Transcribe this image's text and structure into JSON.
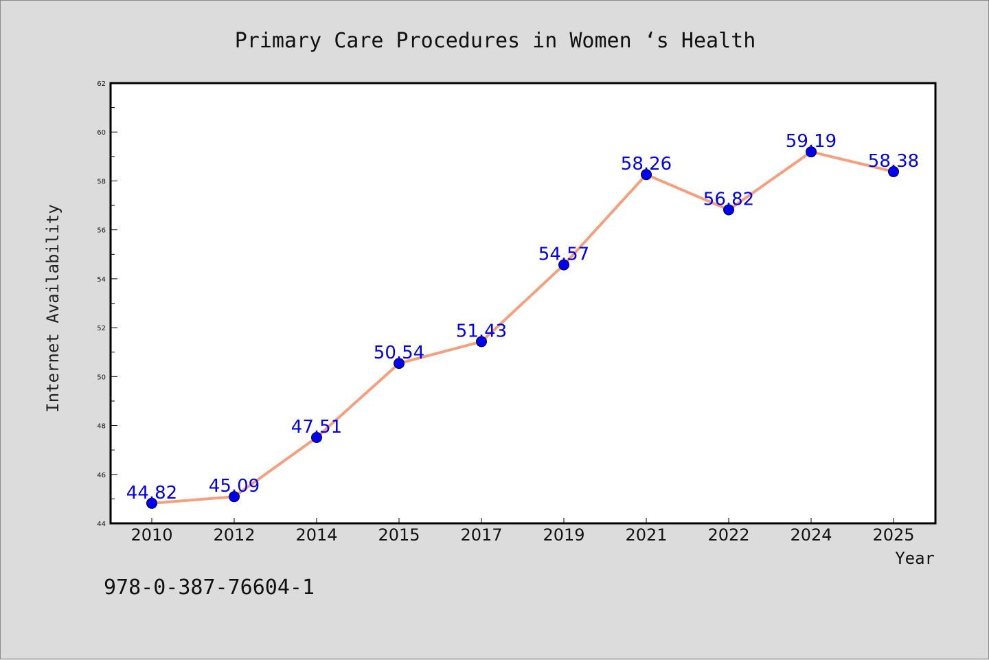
{
  "chart_data": {
    "type": "line",
    "title": "Primary Care Procedures in Women ‘s Health",
    "xlabel": "Year",
    "ylabel": "Internet Availability",
    "categories": [
      "2010",
      "2012",
      "2014",
      "2015",
      "2017",
      "2019",
      "2021",
      "2022",
      "2024",
      "2025"
    ],
    "series": [
      {
        "values": [
          44.82,
          45.09,
          47.51,
          50.54,
          51.43,
          54.57,
          58.26,
          56.82,
          59.19,
          58.38
        ],
        "labels": [
          "44.82",
          "45.09",
          "47.51",
          "50.54",
          "51.43",
          "54.57",
          "58.26",
          "56.82",
          "59.19",
          "58.38"
        ],
        "line_color": "#f4a07e",
        "marker_color": "#0000ee",
        "label_color": "#0000ee"
      }
    ],
    "ylim": [
      44,
      62
    ],
    "yticks": [
      "44",
      "46",
      "48",
      "50",
      "52",
      "54",
      "56",
      "58",
      "60",
      "62"
    ],
    "grid": false,
    "legend": "none"
  },
  "footer": {
    "isbn": "978-0-387-76604-1"
  },
  "colors": {
    "background": "#dcdcdc",
    "plot_background": "#ffffff",
    "axis": "#000000"
  }
}
